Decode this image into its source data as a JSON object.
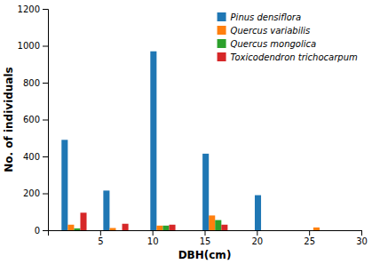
{
  "chart_data": {
    "type": "bar",
    "x": [
      2.5,
      6.5,
      11,
      16,
      21,
      26
    ],
    "series": [
      {
        "name": "Pinus densiflora",
        "values": [
          490,
          215,
          970,
          415,
          190,
          0
        ]
      },
      {
        "name": "Quercus variabilis",
        "values": [
          30,
          12,
          25,
          80,
          0,
          15
        ]
      },
      {
        "name": "Quercus mongolica",
        "values": [
          10,
          0,
          25,
          55,
          0,
          0
        ]
      },
      {
        "name": "Toxicodendron trichocarpum",
        "values": [
          95,
          35,
          30,
          30,
          0,
          0
        ]
      }
    ],
    "xlim": [
      0,
      30
    ],
    "xticks": [
      5,
      10,
      15,
      20,
      25,
      30
    ],
    "ylim": [
      0,
      1200
    ],
    "yticks": [
      0,
      200,
      400,
      600,
      800,
      1000,
      1200
    ],
    "xlabel": "DBH(cm)",
    "ylabel": "No. of individuals",
    "legend": "upper right",
    "grid": false
  }
}
